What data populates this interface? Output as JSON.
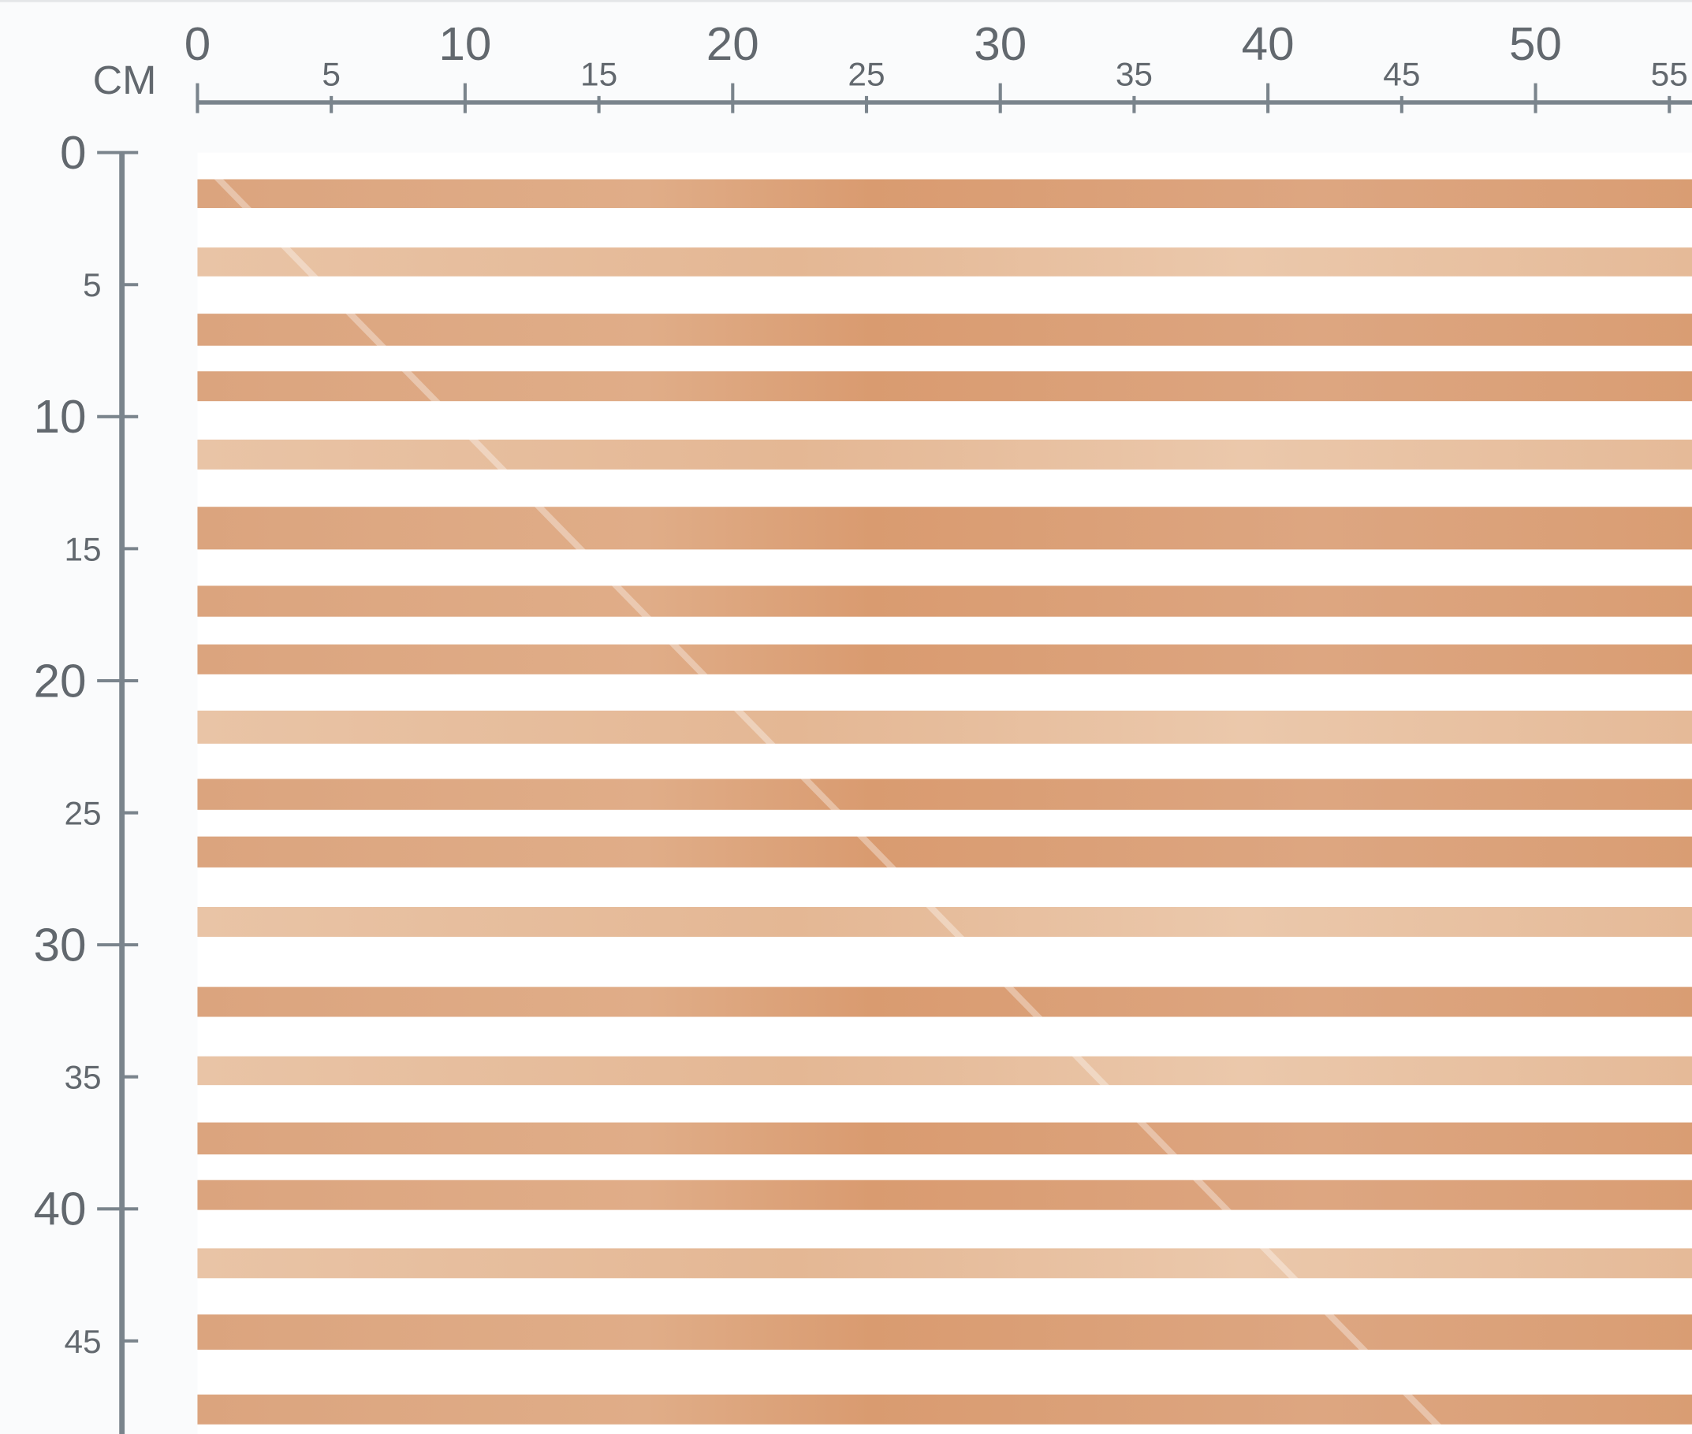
{
  "ruler": {
    "unit": "CM",
    "x_labels": [
      "0",
      "5",
      "10",
      "15",
      "20",
      "25",
      "30",
      "35",
      "40",
      "45",
      "50",
      "55"
    ],
    "y_labels": [
      "0",
      "5",
      "10",
      "15",
      "20",
      "25",
      "30",
      "35",
      "40",
      "45"
    ]
  }
}
